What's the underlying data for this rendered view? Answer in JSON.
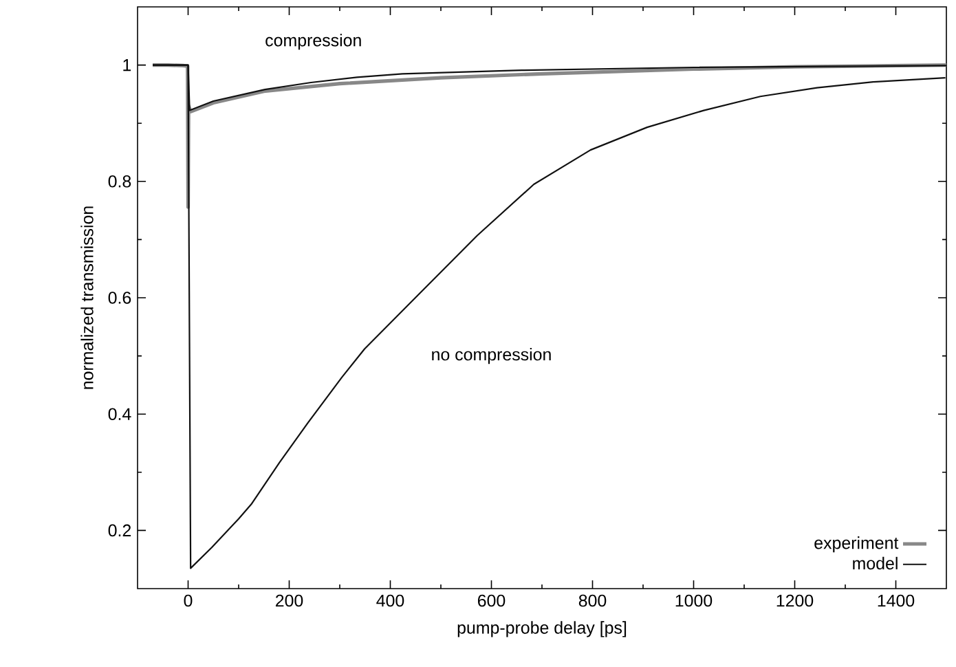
{
  "chart_data": {
    "type": "line",
    "xlabel": "pump-probe delay [ps]",
    "ylabel": "normalized transmission",
    "xlim": [
      -100,
      1500
    ],
    "ylim": [
      0.1,
      1.1
    ],
    "xticks": [
      0,
      200,
      400,
      600,
      800,
      1000,
      1200,
      1400
    ],
    "yticks": [
      0.2,
      0.4,
      0.6,
      0.8,
      1
    ],
    "legend": "bottom right",
    "marker": "none",
    "grid": false,
    "annotations": [
      "compression",
      "no compression"
    ],
    "series": [
      {
        "name": "experiment",
        "color": "#888888",
        "x": [
          -70,
          -40,
          -10,
          -1,
          0,
          1,
          5,
          50,
          150,
          300,
          500,
          700,
          1000,
          1200,
          1500
        ],
        "values": [
          1.0,
          1.0,
          0.999,
          0.998,
          0.756,
          0.93,
          0.92,
          0.935,
          0.955,
          0.968,
          0.978,
          0.985,
          0.993,
          0.997,
          1.0
        ]
      },
      {
        "name": "model",
        "color": "#111111",
        "x": [
          -70,
          0,
          3,
          50,
          152,
          243,
          334,
          424,
          660,
          1000,
          1500
        ],
        "values": [
          1.0,
          1.0,
          0.922,
          0.938,
          0.958,
          0.97,
          0.979,
          0.985,
          0.991,
          0.996,
          0.999
        ]
      },
      {
        "color": "#111111",
        "x": [
          -70,
          0,
          5,
          47,
          100,
          125,
          181,
          237,
          304,
          349,
          461,
          572,
          684,
          796,
          908,
          1020,
          1132,
          1244,
          1355,
          1498
        ],
        "values": [
          1.0,
          1.0,
          0.135,
          0.171,
          0.22,
          0.245,
          0.317,
          0.385,
          0.463,
          0.512,
          0.61,
          0.707,
          0.795,
          0.854,
          0.893,
          0.922,
          0.946,
          0.961,
          0.971,
          0.978
        ]
      }
    ]
  }
}
